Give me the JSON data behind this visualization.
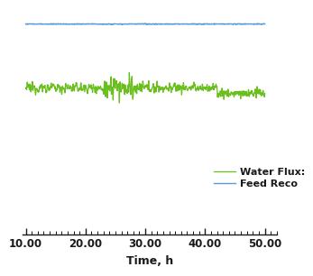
{
  "xlabel": "Time, h",
  "xlim": [
    9.5,
    52.0
  ],
  "ylim": [
    0,
    120
  ],
  "x_ticks": [
    10.0,
    20.0,
    30.0,
    40.0,
    50.0
  ],
  "x_tick_labels": [
    "10.00",
    "20.00",
    "30.00",
    "40.00",
    "50.00"
  ],
  "green_line_color": "#6abf1e",
  "blue_line_color": "#5b9bd5",
  "green_y_mean": 78,
  "blue_y_value": 112,
  "legend_labels": [
    "Water Flux:",
    "Feed Reco"
  ],
  "background_color": "#ffffff",
  "num_points": 800
}
